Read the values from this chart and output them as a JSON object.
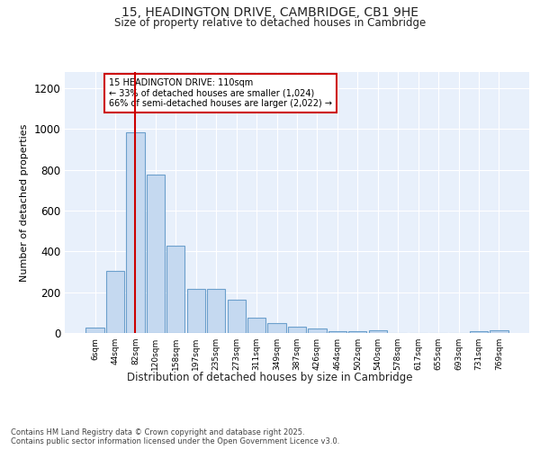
{
  "title_line1": "15, HEADINGTON DRIVE, CAMBRIDGE, CB1 9HE",
  "title_line2": "Size of property relative to detached houses in Cambridge",
  "xlabel": "Distribution of detached houses by size in Cambridge",
  "ylabel": "Number of detached properties",
  "categories": [
    "6sqm",
    "44sqm",
    "82sqm",
    "120sqm",
    "158sqm",
    "197sqm",
    "235sqm",
    "273sqm",
    "311sqm",
    "349sqm",
    "387sqm",
    "426sqm",
    "464sqm",
    "502sqm",
    "540sqm",
    "578sqm",
    "617sqm",
    "655sqm",
    "693sqm",
    "731sqm",
    "769sqm"
  ],
  "values": [
    25,
    305,
    985,
    775,
    430,
    215,
    215,
    165,
    75,
    50,
    30,
    20,
    10,
    10,
    13,
    0,
    0,
    0,
    0,
    10,
    13
  ],
  "bar_color": "#c5d9f0",
  "bar_edge_color": "#6ca0cc",
  "chart_bg_color": "#e8f0fb",
  "fig_bg_color": "#ffffff",
  "grid_color": "#ffffff",
  "vline_color": "#cc0000",
  "vline_x_index": 2,
  "annotation_text": "15 HEADINGTON DRIVE: 110sqm\n← 33% of detached houses are smaller (1,024)\n66% of semi-detached houses are larger (2,022) →",
  "annotation_box_color": "#cc0000",
  "footnote": "Contains HM Land Registry data © Crown copyright and database right 2025.\nContains public sector information licensed under the Open Government Licence v3.0.",
  "ylim": [
    0,
    1280
  ],
  "yticks": [
    0,
    200,
    400,
    600,
    800,
    1000,
    1200
  ]
}
